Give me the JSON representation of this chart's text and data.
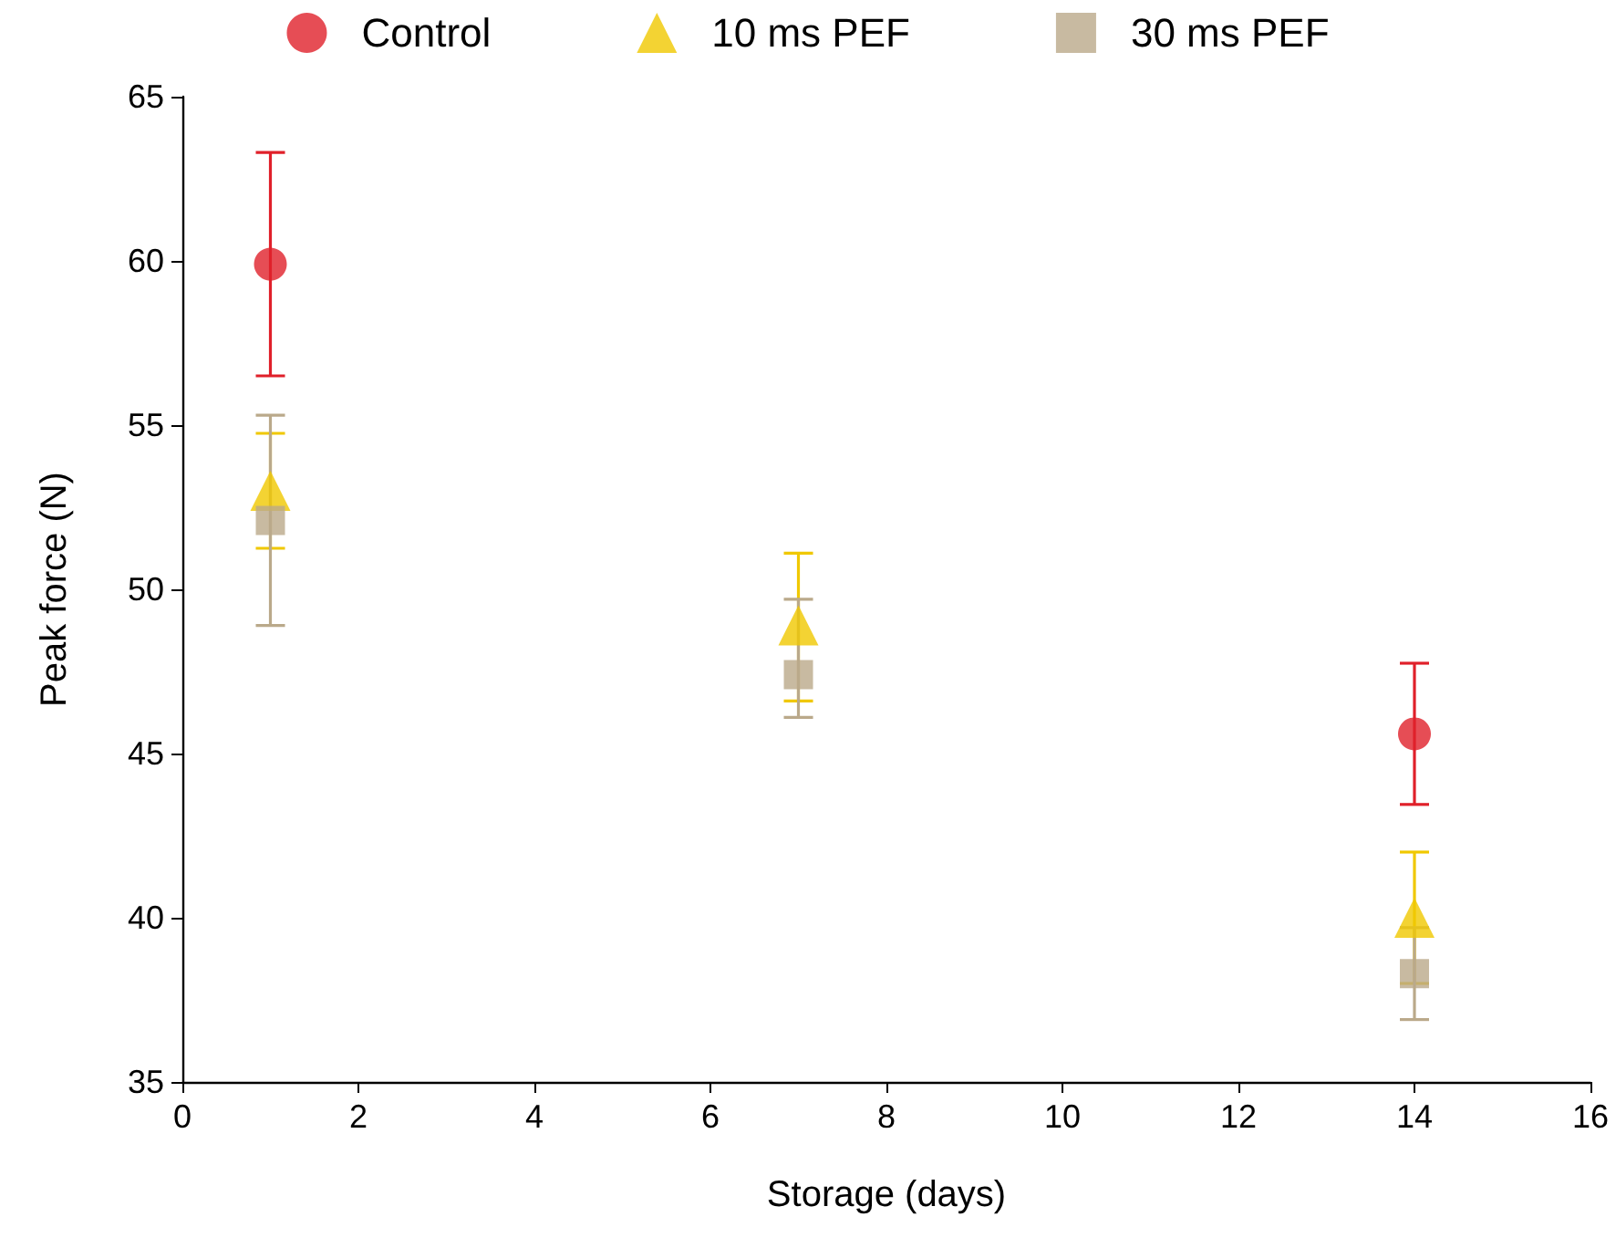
{
  "chart_data": {
    "type": "scatter",
    "xlabel": "Storage (days)",
    "ylabel": "Peak force (N)",
    "x": [
      1,
      7,
      14
    ],
    "series": [
      {
        "name": "Control",
        "color": "#e0202a",
        "marker": "circle",
        "values": [
          59.9,
          null,
          45.6
        ],
        "errors": [
          3.4,
          null,
          2.15
        ]
      },
      {
        "name": "10 ms PEF",
        "color": "#f0c800",
        "marker": "triangle",
        "values": [
          53.0,
          48.9,
          40.0
        ],
        "errors": [
          1.75,
          [
            46.6,
            51.1
          ],
          2.0
        ]
      },
      {
        "name": "30 ms PEF",
        "color": "#baa98a",
        "marker": "square",
        "values": [
          52.1,
          47.4,
          38.3
        ],
        "errors": [
          3.2,
          [
            46.1,
            49.7
          ],
          1.4
        ]
      }
    ],
    "xlim": [
      0,
      16
    ],
    "xticks": [
      0,
      2,
      4,
      6,
      8,
      10,
      12,
      14,
      16
    ],
    "ylim": [
      35,
      65
    ],
    "yticks": [
      35,
      40,
      45,
      50,
      55,
      60,
      65
    ],
    "grid": false,
    "legend": "top"
  }
}
